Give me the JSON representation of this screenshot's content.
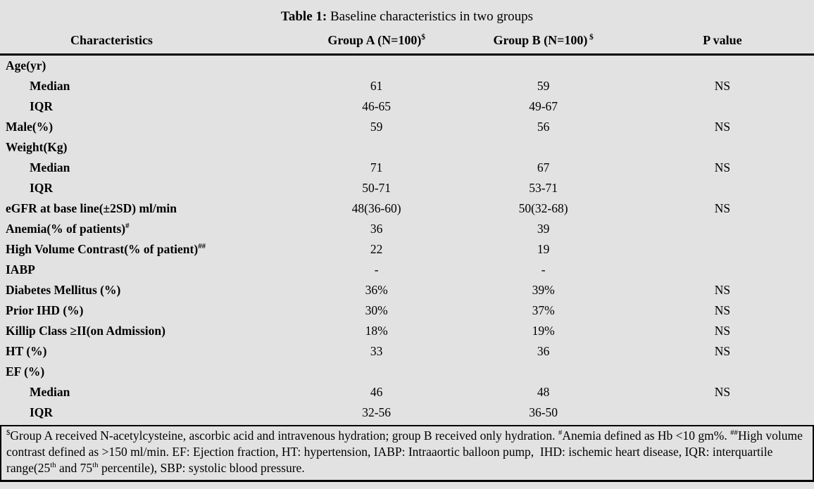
{
  "colors": {
    "background": "#e2e2e2",
    "text": "#000000",
    "rule": "#000000"
  },
  "table": {
    "title_prefix": "Table 1:",
    "title_text": " Baseline characteristics in two groups",
    "columns": [
      {
        "label": "Characteristics",
        "sup": ""
      },
      {
        "label": "Group A (N=100)",
        "sup": "$"
      },
      {
        "label": "Group B (N=100)",
        "sup": " $"
      },
      {
        "label": "P value",
        "sup": ""
      }
    ],
    "rows": [
      {
        "label": "Age(yr)",
        "sup": "",
        "indent": false,
        "a": "",
        "b": "",
        "p": ""
      },
      {
        "label": "Median",
        "sup": "",
        "indent": true,
        "a": "61",
        "b": "59",
        "p": "NS"
      },
      {
        "label": "IQR",
        "sup": "",
        "indent": true,
        "a": "46-65",
        "b": "49-67",
        "p": ""
      },
      {
        "label": "Male(%)",
        "sup": "",
        "indent": false,
        "a": "59",
        "b": "56",
        "p": "NS"
      },
      {
        "label": "Weight(Kg)",
        "sup": "",
        "indent": false,
        "a": "",
        "b": "",
        "p": ""
      },
      {
        "label": "Median",
        "sup": "",
        "indent": true,
        "a": "71",
        "b": "67",
        "p": "NS"
      },
      {
        "label": "IQR",
        "sup": "",
        "indent": true,
        "a": "50-71",
        "b": "53-71",
        "p": ""
      },
      {
        "label": "eGFR at base line(±2SD) ml/min",
        "sup": "",
        "indent": false,
        "a": "48(36-60)",
        "b": "50(32-68)",
        "p": "NS"
      },
      {
        "label": "Anemia(% of patients)",
        "sup": "#",
        "indent": false,
        "a": "36",
        "b": "39",
        "p": ""
      },
      {
        "label": "High Volume Contrast(% of patient)",
        "sup": "##",
        "indent": false,
        "a": "22",
        "b": "19",
        "p": ""
      },
      {
        "label": "IABP",
        "sup": "",
        "indent": false,
        "a": "-",
        "b": "-",
        "p": ""
      },
      {
        "label": "Diabetes Mellitus (%)",
        "sup": "",
        "indent": false,
        "a": "36%",
        "b": "39%",
        "p": "NS"
      },
      {
        "label": "Prior IHD (%)",
        "sup": "",
        "indent": false,
        "a": "30%",
        "b": "37%",
        "p": "NS"
      },
      {
        "label": "Killip Class ≥II(on Admission)",
        "sup": "",
        "indent": false,
        "a": "18%",
        "b": "19%",
        "p": "NS"
      },
      {
        "label": "HT (%)",
        "sup": "",
        "indent": false,
        "a": "33",
        "b": "36",
        "p": "NS"
      },
      {
        "label": "EF (%)",
        "sup": "",
        "indent": false,
        "a": "",
        "b": "",
        "p": ""
      },
      {
        "label": "Median",
        "sup": "",
        "indent": true,
        "a": "46",
        "b": "48",
        "p": "NS"
      },
      {
        "label": "IQR",
        "sup": "",
        "indent": true,
        "a": "32-56",
        "b": "36-50",
        "p": ""
      }
    ],
    "footnote": [
      {
        "t": "$",
        "sup": true
      },
      {
        "t": "Group A received N-acetylcysteine, ascorbic acid and intravenous hydration; group B received only hydration. ",
        "sup": false
      },
      {
        "t": "#",
        "sup": true
      },
      {
        "t": "Anemia defined as Hb <10 gm%. ",
        "sup": false
      },
      {
        "t": "##",
        "sup": true
      },
      {
        "t": "High volume contrast defined as >150 ml/min. EF: Ejection fraction, HT: hypertension, IABP: Intraaortic balloon pump,  IHD: ischemic heart disease, IQR: interquartile range(25",
        "sup": false
      },
      {
        "t": "th",
        "sup": true
      },
      {
        "t": " and 75",
        "sup": false
      },
      {
        "t": "th",
        "sup": true
      },
      {
        "t": " percentile), SBP: systolic blood pressure.",
        "sup": false
      }
    ]
  }
}
